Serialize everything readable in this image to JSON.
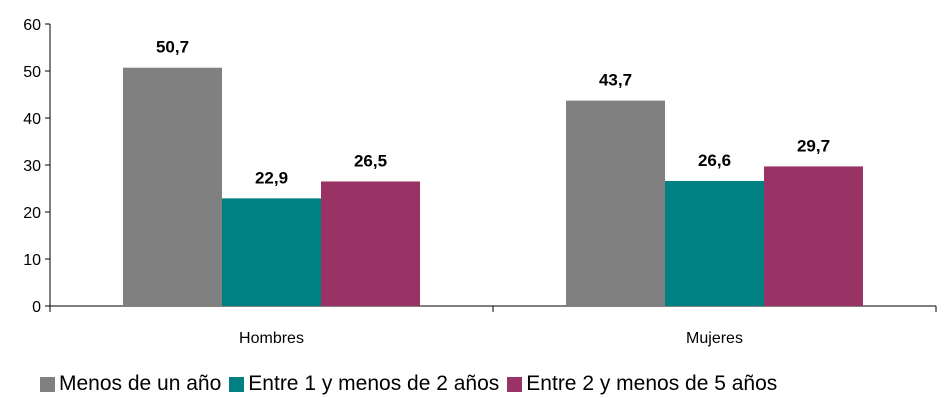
{
  "chart_data": {
    "type": "bar",
    "categories": [
      "Hombres",
      "Mujeres"
    ],
    "series": [
      {
        "name": "Menos de un año",
        "values": [
          50.7,
          43.7
        ],
        "labels": [
          "50,7",
          "43,7"
        ],
        "color": "#808080"
      },
      {
        "name": "Entre 1 y menos de 2 años",
        "values": [
          22.9,
          26.6
        ],
        "labels": [
          "22,9",
          "26,6"
        ],
        "color": "#008080"
      },
      {
        "name": "Entre 2 y menos de 5 años",
        "values": [
          26.5,
          29.7
        ],
        "labels": [
          "26,5",
          "29,7"
        ],
        "color": "#993366"
      }
    ],
    "yticks": [
      "0",
      "10",
      "20",
      "30",
      "40",
      "50",
      "60"
    ],
    "ylim": [
      0,
      60
    ],
    "grid": false,
    "legend": "bottom",
    "title": "",
    "xlabel": "",
    "ylabel": ""
  }
}
